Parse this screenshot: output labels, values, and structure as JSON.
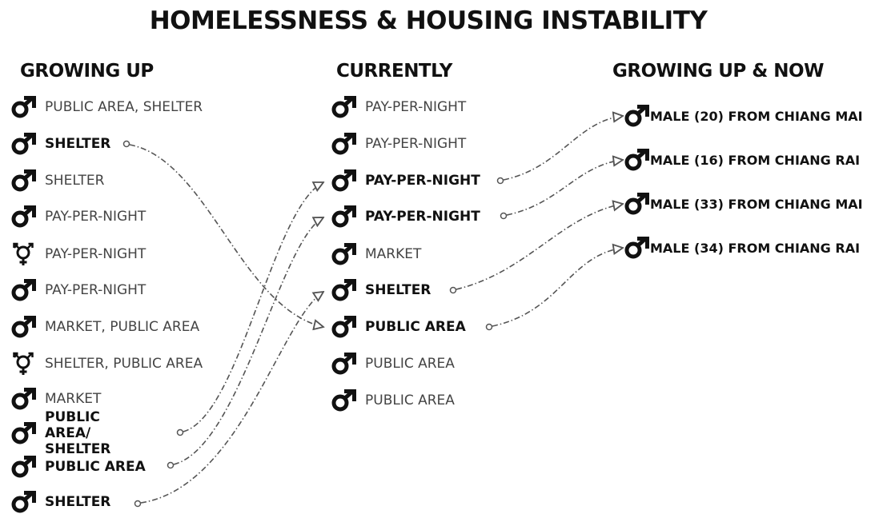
{
  "title": "HOMELESSNESS & HOUSING INSTABILITY",
  "columns": [
    {
      "heading": "GROWING UP",
      "rows": [
        "PUBLIC AREA, SHELTER",
        "SHELTER",
        "SHELTER",
        "PAY-PER-NIGHT",
        "PAY-PER-NIGHT",
        "PAY-PER-NIGHT",
        "MARKET, PUBLIC AREA",
        "SHELTER, PUBLIC AREA",
        "MARKET",
        "PUBLIC AREA/ SHELTER",
        "PUBLIC AREA",
        "SHELTER"
      ]
    },
    {
      "heading": "CURRENTLY",
      "rows": [
        "PAY-PER-NIGHT",
        "PAY-PER-NIGHT",
        "PAY-PER-NIGHT",
        "PAY-PER-NIGHT",
        "MARKET",
        "SHELTER",
        "PUBLIC AREA",
        "PUBLIC AREA",
        "PUBLIC AREA"
      ]
    },
    {
      "heading": "GROWING UP & NOW",
      "rows": [
        "MALE (20) FROM CHIANG MAI",
        "MALE (16) FROM CHIANG RAI",
        "MALE (33) FROM CHIANG MAI",
        "MALE (34) FROM CHIANG RAI"
      ]
    }
  ]
}
